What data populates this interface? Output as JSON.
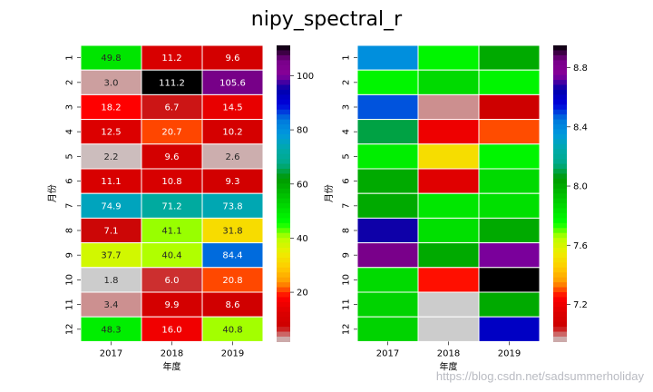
{
  "title": "nipy_spectral_r",
  "watermark": "https://blog.csdn.net/sadsummerholiday",
  "chart_data": [
    {
      "type": "heatmap",
      "cmap": "nipy_spectral_r",
      "xlabel": "年度",
      "ylabel": "月份",
      "x_categories": [
        "2017",
        "2018",
        "2019"
      ],
      "y_categories": [
        "1",
        "2",
        "3",
        "4",
        "5",
        "6",
        "7",
        "8",
        "9",
        "10",
        "11",
        "12"
      ],
      "values": [
        [
          49.8,
          11.2,
          9.6
        ],
        [
          3.0,
          111.2,
          105.6
        ],
        [
          18.2,
          6.7,
          14.5
        ],
        [
          12.5,
          20.7,
          10.2
        ],
        [
          2.2,
          9.6,
          2.6
        ],
        [
          11.1,
          10.8,
          9.3
        ],
        [
          74.9,
          71.2,
          73.8
        ],
        [
          7.1,
          41.1,
          31.8
        ],
        [
          37.7,
          40.4,
          84.4
        ],
        [
          1.8,
          6.0,
          20.8
        ],
        [
          3.4,
          9.9,
          8.6
        ],
        [
          48.3,
          16.0,
          40.8
        ]
      ],
      "labels": [
        [
          "49.8",
          "11.2",
          "9.6"
        ],
        [
          "3.0",
          "111.2",
          "105.6"
        ],
        [
          "18.2",
          "6.7",
          "14.5"
        ],
        [
          "12.5",
          "20.7",
          "10.2"
        ],
        [
          "2.2",
          "9.6",
          "2.6"
        ],
        [
          "11.1",
          "10.8",
          "9.3"
        ],
        [
          "74.9",
          "71.2",
          "73.8"
        ],
        [
          "7.1",
          "41.1",
          "31.8"
        ],
        [
          "37.7",
          "40.4",
          "84.4"
        ],
        [
          "1.8",
          "6.0",
          "20.8"
        ],
        [
          "3.4",
          "9.9",
          "8.6"
        ],
        [
          "48.3",
          "16.0",
          "40.8"
        ]
      ],
      "annotate": true,
      "vmin": 1.8,
      "vmax": 111.2,
      "colorbar_ticks": [
        20,
        40,
        60,
        80,
        100
      ],
      "colorbar_tick_labels": [
        "20",
        "40",
        "60",
        "80",
        "100"
      ]
    },
    {
      "type": "heatmap",
      "cmap": "nipy_spectral_r",
      "xlabel": "年度",
      "ylabel": "月份",
      "x_categories": [
        "2017",
        "2018",
        "2019"
      ],
      "y_categories": [
        "1",
        "2",
        "3",
        "4",
        "5",
        "6",
        "7",
        "8",
        "9",
        "10",
        "11",
        "12"
      ],
      "values": [
        [
          8.38,
          7.78,
          8.0
        ],
        [
          7.78,
          7.86,
          7.78
        ],
        [
          8.48,
          6.98,
          7.06
        ],
        [
          8.1,
          7.2,
          7.3
        ],
        [
          7.8,
          7.5,
          7.78
        ],
        [
          8.0,
          7.16,
          7.86
        ],
        [
          8.0,
          7.82,
          7.84
        ],
        [
          8.66,
          7.84,
          8.0
        ],
        [
          8.84,
          8.0,
          8.74
        ],
        [
          7.86,
          7.26,
          8.95
        ],
        [
          7.88,
          6.95,
          8.0
        ],
        [
          7.88,
          6.95,
          8.6
        ]
      ],
      "annotate": false,
      "vmin": 6.95,
      "vmax": 8.95,
      "colorbar_ticks": [
        7.2,
        7.6,
        8.0,
        8.4,
        8.8
      ],
      "colorbar_tick_labels": [
        "7.2",
        "7.6",
        "8.0",
        "8.4",
        "8.8"
      ]
    }
  ]
}
